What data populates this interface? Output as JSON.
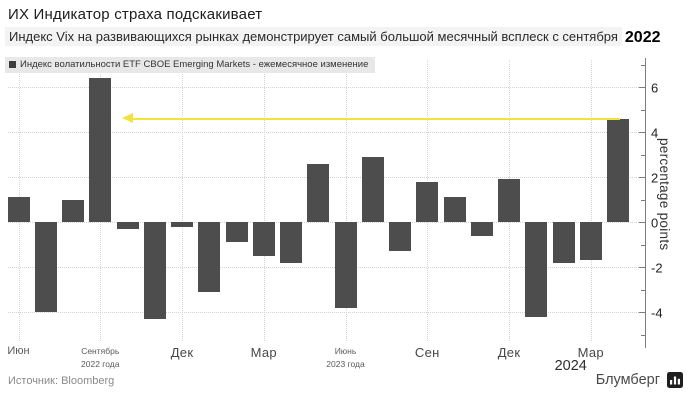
{
  "header": {
    "title": "ИХ Индикатор страха подскакивает",
    "subtitle": "Индекс Vix на развивающихся рынках демонстрирует самый большой месячный всплеск с сентября",
    "subtitle_year": "2022"
  },
  "legend": {
    "label": "Индекс волатильности ETF CBOE Emerging Markets - ежемесячное изменение",
    "swatch_color": "#3d3d3d"
  },
  "chart_data": {
    "type": "bar",
    "title": "ИХ Индикатор страха подскакивает",
    "subtitle": "Индекс Vix на развивающихся рынках демонстрирует самый большой месячный всплеск с сентября 2022",
    "series_name": "Индекс волатильности ETF CBOE Emerging Markets - ежемесячное изменение",
    "ylabel": "percentage points",
    "ylim": [
      -5.6,
      7.2
    ],
    "yticks": [
      6,
      4,
      2,
      0,
      -2,
      -4
    ],
    "yticks_minor": [
      7,
      5,
      3,
      1,
      -1,
      -3,
      -5
    ],
    "grid": "dotted",
    "legend_position": "top-left",
    "bar_color": "#4d4d4d",
    "x": [
      "Июн 2022",
      "Июл 2022",
      "Авг 2022",
      "Сен 2022",
      "Окт 2022",
      "Ноя 2022",
      "Дек 2022",
      "Янв 2023",
      "Фев 2023",
      "Мар 2023",
      "Апр 2023",
      "Май 2023",
      "Июн 2023",
      "Июл 2023",
      "Авг 2023",
      "Сен 2023",
      "Окт 2023",
      "Ноя 2023",
      "Дек 2023",
      "Янв 2024",
      "Фев 2024",
      "Мар 2024",
      "Апр 2024"
    ],
    "values": [
      1.1,
      -4.0,
      1.0,
      6.4,
      -0.3,
      -4.3,
      -0.2,
      -3.1,
      -0.9,
      -1.5,
      -1.8,
      2.6,
      -3.8,
      2.9,
      -1.3,
      1.8,
      1.1,
      -0.6,
      1.9,
      -4.2,
      -1.8,
      -1.7,
      4.6
    ],
    "x_tick_labels": [
      {
        "text": "Июн",
        "sub": "",
        "index": 0,
        "size": "medium"
      },
      {
        "text": "Сентябрь",
        "sub": "2022 года",
        "index": 3,
        "size": "small"
      },
      {
        "text": "Дек",
        "sub": "",
        "index": 6,
        "size": "large"
      },
      {
        "text": "Мар",
        "sub": "",
        "index": 9,
        "size": "large"
      },
      {
        "text": "Июнь",
        "sub": "2023 года",
        "index": 12,
        "size": "small"
      },
      {
        "text": "Сен",
        "sub": "",
        "index": 15,
        "size": "large"
      },
      {
        "text": "Дек",
        "sub": "",
        "index": 18,
        "size": "large"
      },
      {
        "text": "Мар",
        "sub": "",
        "index": 21,
        "size": "large",
        "extra": "2024"
      }
    ],
    "grid_at_indices": [
      0,
      3,
      6,
      9,
      12,
      15,
      18,
      21
    ],
    "arrow_annotation": {
      "y": 4.6,
      "from_bar_index": 22,
      "to_bar_index": 4,
      "direction": "left",
      "color": "#f2e33c"
    }
  },
  "footer": {
    "source": "Источник: Bloomberg",
    "brand": "Блумберг"
  }
}
